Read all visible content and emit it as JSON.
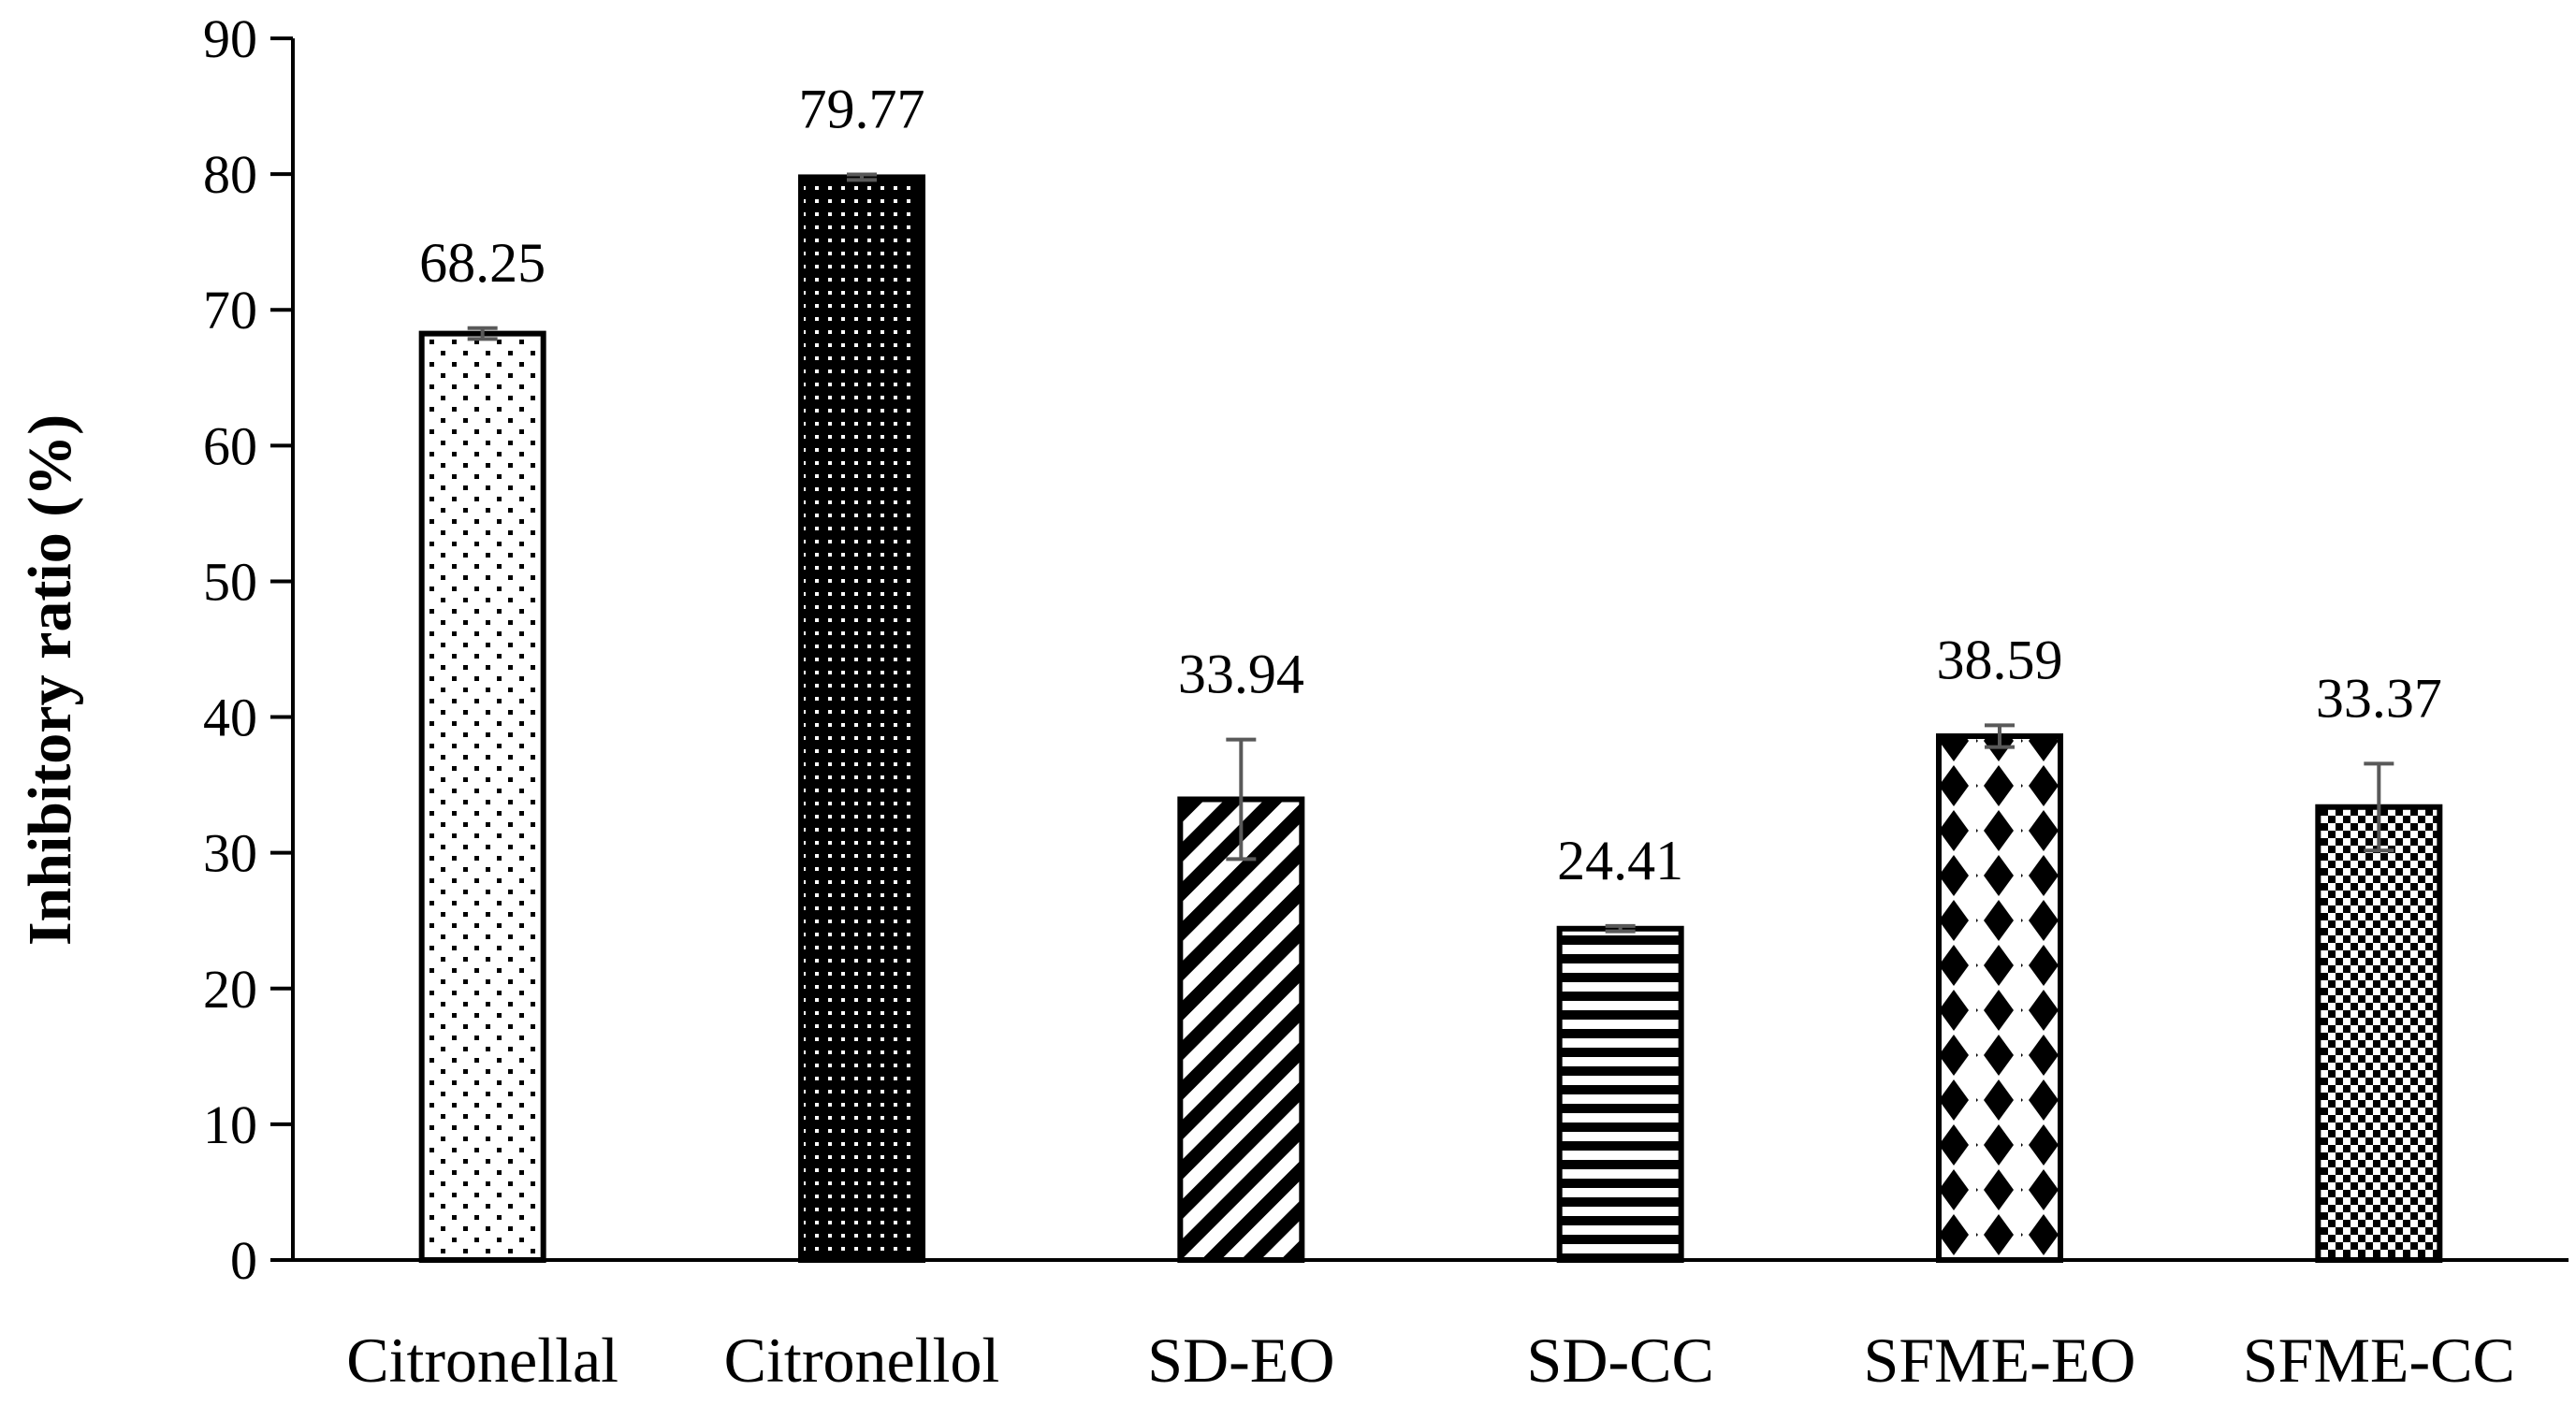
{
  "chart_data": {
    "type": "bar",
    "title": "",
    "xlabel": "",
    "ylabel": "Inhibitory ratio (%)",
    "ylim": [
      0,
      90
    ],
    "yticks": [
      0,
      10,
      20,
      30,
      40,
      50,
      60,
      70,
      80,
      90
    ],
    "categories": [
      "Citronellal",
      "Citronellol",
      "SD-EO",
      "SD-CC",
      "SFME-EO",
      "SFME-CC"
    ],
    "values": [
      68.25,
      79.77,
      33.94,
      24.41,
      38.59,
      33.37
    ],
    "value_labels": [
      "68.25",
      "79.77",
      "33.94",
      "24.41",
      "38.59",
      "33.37"
    ],
    "errors": [
      0.4,
      0.2,
      4.4,
      0.2,
      0.8,
      3.2
    ],
    "patterns": [
      "sparse-dots",
      "dense-dots",
      "diagonal-stripes",
      "horizontal-stripes",
      "diamonds",
      "checker"
    ],
    "grid": false,
    "legend": "none",
    "colors": {
      "bar_fill": "#000000",
      "bar_bg": "#ffffff",
      "axis": "#000000",
      "error_bar": "#595959"
    }
  }
}
